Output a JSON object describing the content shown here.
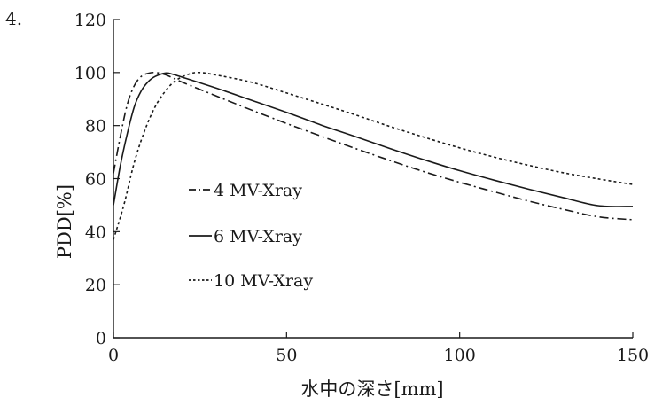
{
  "problem_number": "4.",
  "chart_data": {
    "type": "line",
    "xlabel": "水中の深さ[mm]",
    "ylabel": "PDD[%]",
    "xlim": [
      0,
      150
    ],
    "ylim": [
      0,
      120
    ],
    "xticks": [
      0,
      50,
      100,
      150
    ],
    "yticks": [
      0,
      20,
      40,
      60,
      80,
      100,
      120
    ],
    "grid": false,
    "legend_position": "center-left",
    "series": [
      {
        "name": "4 MV-Xray",
        "dash": "dashdot",
        "x": [
          0,
          2,
          4,
          6,
          8,
          10,
          12,
          15,
          20,
          30,
          40,
          50,
          60,
          70,
          80,
          90,
          100,
          110,
          120,
          130,
          140,
          150
        ],
        "y": [
          62,
          76,
          88,
          95,
          98.5,
          99.7,
          100,
          99.2,
          96.3,
          91,
          85.8,
          80.8,
          76,
          71.3,
          66.8,
          62.5,
          58.6,
          55,
          51.5,
          48.4,
          45.6,
          44.5
        ]
      },
      {
        "name": "6 MV-Xray",
        "dash": "solid",
        "x": [
          0,
          2,
          4,
          6,
          8,
          10,
          12,
          15,
          17,
          20,
          30,
          40,
          50,
          60,
          70,
          80,
          90,
          100,
          110,
          120,
          130,
          140,
          150
        ],
        "y": [
          50,
          65,
          77,
          87,
          93,
          96.5,
          98.5,
          99.8,
          99.4,
          98.2,
          94,
          89.5,
          85,
          80.2,
          75.8,
          71.3,
          67,
          63,
          59.4,
          56,
          52.8,
          49.8,
          49.5
        ]
      },
      {
        "name": "10 MV-Xray",
        "dash": "dotted",
        "x": [
          0,
          3,
          6,
          9,
          12,
          15,
          18,
          22,
          25,
          30,
          40,
          50,
          60,
          70,
          80,
          90,
          100,
          110,
          120,
          130,
          140,
          150
        ],
        "y": [
          37,
          50,
          66,
          78,
          87,
          93,
          97,
          99.5,
          100,
          99,
          96.3,
          92.3,
          88.2,
          84,
          79.6,
          75.5,
          71.6,
          68.1,
          65,
          62.2,
          59.9,
          57.8
        ]
      }
    ]
  }
}
